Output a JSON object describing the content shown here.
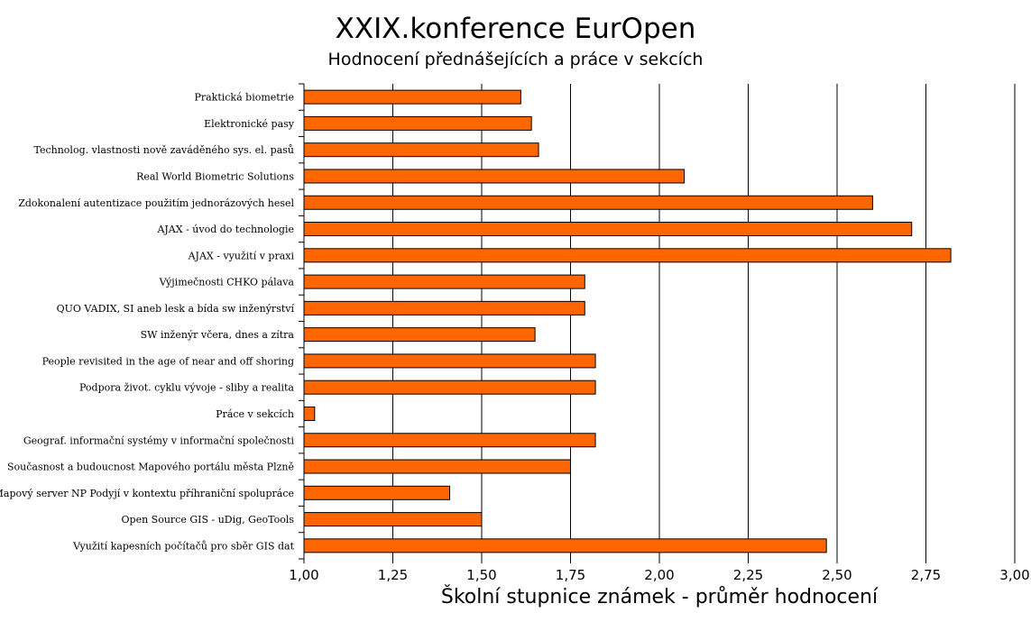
{
  "chart_data": {
    "type": "bar",
    "orientation": "horizontal",
    "title": "XXIX.konference EurOpen",
    "subtitle": "Hodnocení přednášejících a práce v sekcích",
    "xlabel": "Školní stupnice známek - průměr hodnocení",
    "ylabel": "",
    "xlim": [
      1.0,
      3.0
    ],
    "xticks": [
      "1,00",
      "1,25",
      "1,50",
      "1,75",
      "2,00",
      "2,25",
      "2,50",
      "2,75",
      "3,00"
    ],
    "grid": "vertical",
    "bar_color": "#ff6600",
    "categories": [
      "Praktická biometrie",
      "Elektronické pasy",
      "Technolog. vlastnosti nově zaváděného sys. el. pasů",
      "Real World Biometric Solutions",
      "Zdokonalení autentizace použitím jednorázových hesel",
      "AJAX - úvod do technologie",
      "AJAX - využití v praxi",
      "Výjimečnosti CHKO pálava",
      "QUO VADIX, SI aneb lesk a bída sw inženýrství",
      "SW inženýr včera, dnes a zítra",
      "People revisited in the age of near and off shoring",
      "Podpora život. cyklu vývoje - sliby a realita",
      "Práce v sekcích",
      "Geograf. informační systémy v informační společnosti",
      "Současnost a budoucnost Mapového portálu města Plzně",
      "Mapový server NP Podyjí v kontextu příhraniční spolupráce",
      "Open  Source GIS - uDig, GeoTools",
      "Využití kapesních počítačů pro sběr GIS dat"
    ],
    "values": [
      1.61,
      1.64,
      1.66,
      2.07,
      2.6,
      2.71,
      2.82,
      1.79,
      1.79,
      1.65,
      1.82,
      1.82,
      1.03,
      1.82,
      1.75,
      1.41,
      1.5,
      2.47
    ]
  }
}
